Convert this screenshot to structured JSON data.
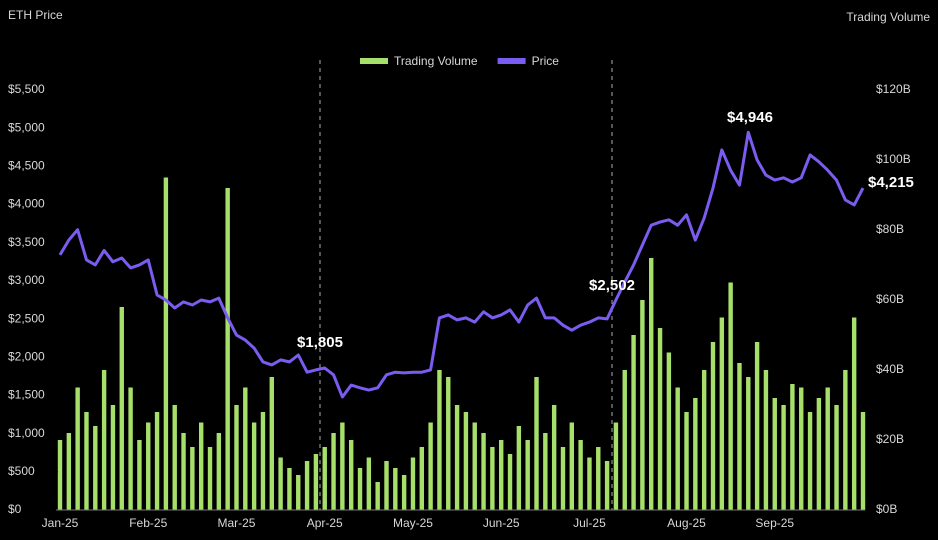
{
  "chart_data": {
    "type": "combo",
    "y_axis_title": "ETH Price",
    "y2_axis_title": "Trading Volume",
    "categories": [
      "Jan-25",
      null,
      null,
      null,
      null,
      null,
      null,
      null,
      null,
      null,
      "Feb-25",
      null,
      null,
      null,
      null,
      null,
      null,
      null,
      null,
      null,
      "Mar-25",
      null,
      null,
      null,
      null,
      null,
      null,
      null,
      null,
      null,
      "Apr-25",
      null,
      null,
      null,
      null,
      null,
      null,
      null,
      null,
      null,
      "May-25",
      null,
      null,
      null,
      null,
      null,
      null,
      null,
      null,
      null,
      "Jun-25",
      null,
      null,
      null,
      null,
      null,
      null,
      null,
      null,
      null,
      "Jul-25",
      null,
      null,
      null,
      null,
      null,
      null,
      null,
      null,
      null,
      null,
      "Aug-25",
      null,
      null,
      null,
      null,
      null,
      null,
      null,
      null,
      null,
      "Sep-25",
      null,
      null,
      null,
      null,
      null,
      null,
      null,
      null,
      null,
      null
    ],
    "series": [
      {
        "name": "Trading Volume",
        "type": "bar",
        "axis": "y2",
        "color": "#a6e06b",
        "values": [
          20,
          22,
          35,
          28,
          24,
          40,
          30,
          58,
          35,
          20,
          25,
          28,
          95,
          30,
          22,
          18,
          25,
          18,
          22,
          92,
          30,
          35,
          25,
          28,
          38,
          15,
          12,
          10,
          14,
          16,
          18,
          22,
          25,
          20,
          12,
          15,
          8,
          14,
          12,
          10,
          15,
          18,
          25,
          40,
          38,
          30,
          28,
          25,
          22,
          18,
          20,
          16,
          24,
          20,
          38,
          22,
          30,
          18,
          25,
          20,
          15,
          18,
          14,
          25,
          40,
          50,
          60,
          72,
          52,
          45,
          35,
          28,
          32,
          40,
          48,
          55,
          65,
          42,
          38,
          48,
          40,
          32,
          30,
          36,
          35,
          28,
          32,
          35,
          30,
          40,
          55,
          28
        ]
      },
      {
        "name": "Price",
        "type": "line",
        "color": "#7b5cf0",
        "values": [
          3340,
          3535,
          3670,
          3275,
          3210,
          3400,
          3250,
          3300,
          3170,
          3210,
          3275,
          2815,
          2750,
          2645,
          2725,
          2685,
          2750,
          2725,
          2775,
          2515,
          2290,
          2225,
          2120,
          1940,
          1900,
          1965,
          1940,
          2030,
          1805,
          1835,
          1860,
          1770,
          1480,
          1635,
          1600,
          1570,
          1600,
          1770,
          1805,
          1795,
          1805,
          1805,
          1835,
          2515,
          2555,
          2490,
          2515,
          2460,
          2595,
          2515,
          2555,
          2620,
          2460,
          2685,
          2775,
          2515,
          2515,
          2420,
          2355,
          2420,
          2460,
          2515,
          2502,
          2750,
          2985,
          3210,
          3470,
          3730,
          3770,
          3800,
          3730,
          3865,
          3535,
          3825,
          4215,
          4715,
          4450,
          4255,
          4946,
          4585,
          4385,
          4320,
          4350,
          4295,
          4350,
          4650,
          4560,
          4450,
          4320,
          4060,
          3995,
          4215
        ]
      }
    ],
    "annotations": [
      {
        "label": "$1,805",
        "value": 1805
      },
      {
        "label": "$2,502",
        "value": 2502
      },
      {
        "label": "$4,946",
        "value": 4946
      },
      {
        "label": "$4,215",
        "value": 4215
      }
    ],
    "ylim": [
      0,
      5500
    ],
    "yticks": [
      {
        "value": 0,
        "label": "$0"
      },
      {
        "value": 500,
        "label": "$500"
      },
      {
        "value": 1000,
        "label": "$1,000"
      },
      {
        "value": 1500,
        "label": "$1,500"
      },
      {
        "value": 2000,
        "label": "$2,000"
      },
      {
        "value": 2500,
        "label": "$2,500"
      },
      {
        "value": 3000,
        "label": "$3,000"
      },
      {
        "value": 3500,
        "label": "$3,500"
      },
      {
        "value": 4000,
        "label": "$4,000"
      },
      {
        "value": 4500,
        "label": "$4,500"
      },
      {
        "value": 5000,
        "label": "$5,000"
      },
      {
        "value": 5500,
        "label": "$5,500"
      }
    ],
    "y2lim": [
      0,
      120
    ],
    "y2ticks": [
      {
        "value": 0,
        "label": "$0B"
      },
      {
        "value": 20,
        "label": "$20B"
      },
      {
        "value": 40,
        "label": "$40B"
      },
      {
        "value": 60,
        "label": "$60B"
      },
      {
        "value": 80,
        "label": "$80B"
      },
      {
        "value": 100,
        "label": "$100B"
      },
      {
        "value": 120,
        "label": "$120B"
      }
    ],
    "grid": false,
    "legend": "top"
  }
}
